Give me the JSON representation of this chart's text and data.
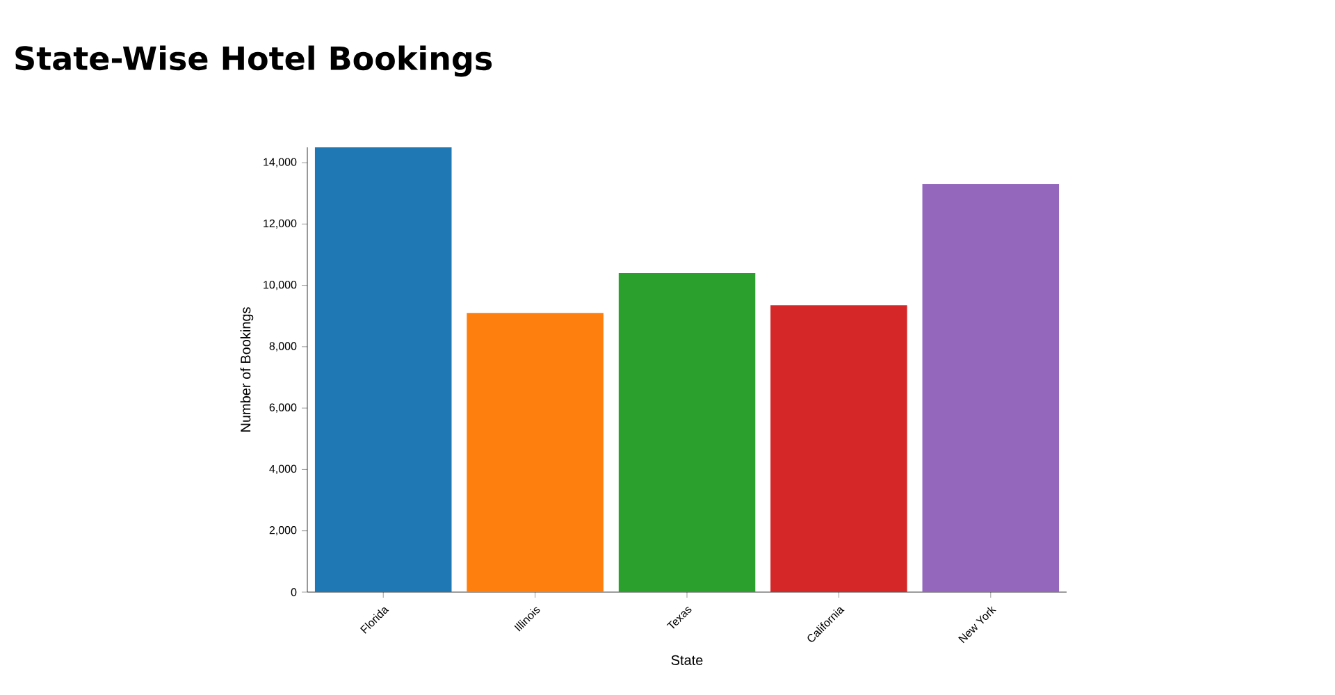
{
  "chart_data": {
    "type": "bar",
    "title": "State-Wise Hotel Bookings",
    "xlabel": "State",
    "ylabel": "Number of Bookings",
    "categories": [
      "Florida",
      "Illinois",
      "Texas",
      "California",
      "New York"
    ],
    "values": [
      14500,
      9100,
      10400,
      9350,
      13300
    ],
    "colors": [
      "#1f77b4",
      "#ff7f0e",
      "#2ca02c",
      "#d62728",
      "#9467bd"
    ],
    "ylim": [
      0,
      14500
    ],
    "yticks": [
      {
        "value": 0,
        "label": "0"
      },
      {
        "value": 2000,
        "label": "2,000"
      },
      {
        "value": 4000,
        "label": "4,000"
      },
      {
        "value": 6000,
        "label": "6,000"
      },
      {
        "value": 8000,
        "label": "8,000"
      },
      {
        "value": 10000,
        "label": "10,000"
      },
      {
        "value": 12000,
        "label": "12,000"
      },
      {
        "value": 14000,
        "label": "14,000"
      }
    ],
    "grid": false
  }
}
